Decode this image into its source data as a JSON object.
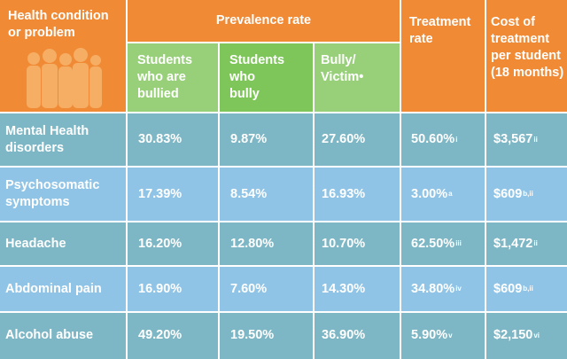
{
  "header": {
    "condition": "Health condition\nor problem",
    "prevalence": "Prevalence rate",
    "treatment_rate": "Treatment\nrate",
    "cost": "Cost of\ntreatment\nper student\n(18 months)",
    "sub_bullied": "Students\nwho are\nbullied",
    "sub_bully": "Students\nwho\nbully",
    "sub_victim": "Bully/\nVictim•"
  },
  "rows": [
    {
      "condition": "Mental Health\ndisorders",
      "bullied": "30.83%",
      "bully": "9.87%",
      "victim": "27.60%",
      "treatment": "50.60%",
      "treatment_note": "i",
      "cost": "$3,567",
      "cost_note": "ii"
    },
    {
      "condition": "Psychosomatic\nsymptoms",
      "bullied": "17.39%",
      "bully": "8.54%",
      "victim": "16.93%",
      "treatment": "3.00%",
      "treatment_note": " a",
      "cost": "$609",
      "cost_note": "b,ii"
    },
    {
      "condition": "Headache",
      "bullied": "16.20%",
      "bully": "12.80%",
      "victim": "10.70%",
      "treatment": "62.50%",
      "treatment_note": "iii",
      "cost": "$1,472",
      "cost_note": "ii"
    },
    {
      "condition": "Abdominal pain",
      "bullied": "16.90%",
      "bully": "7.60%",
      "victim": "14.30%",
      "treatment": "34.80%",
      "treatment_note": "iv",
      "cost": "$609",
      "cost_note": "b,ii"
    },
    {
      "condition": "Alcohol abuse",
      "bullied": "49.20%",
      "bully": "19.50%",
      "victim": "36.90%",
      "treatment": "5.90%",
      "treatment_note": " v",
      "cost": "$2,150",
      "cost_note": " vi"
    }
  ],
  "colors": {
    "header": "#f08a35",
    "sub_light": "#98d07a",
    "sub_dark": "#7fc65a",
    "row_teal": "#7db6c4",
    "row_blue": "#8fc4e6"
  },
  "icons": [
    "people-silhouette-icon"
  ]
}
